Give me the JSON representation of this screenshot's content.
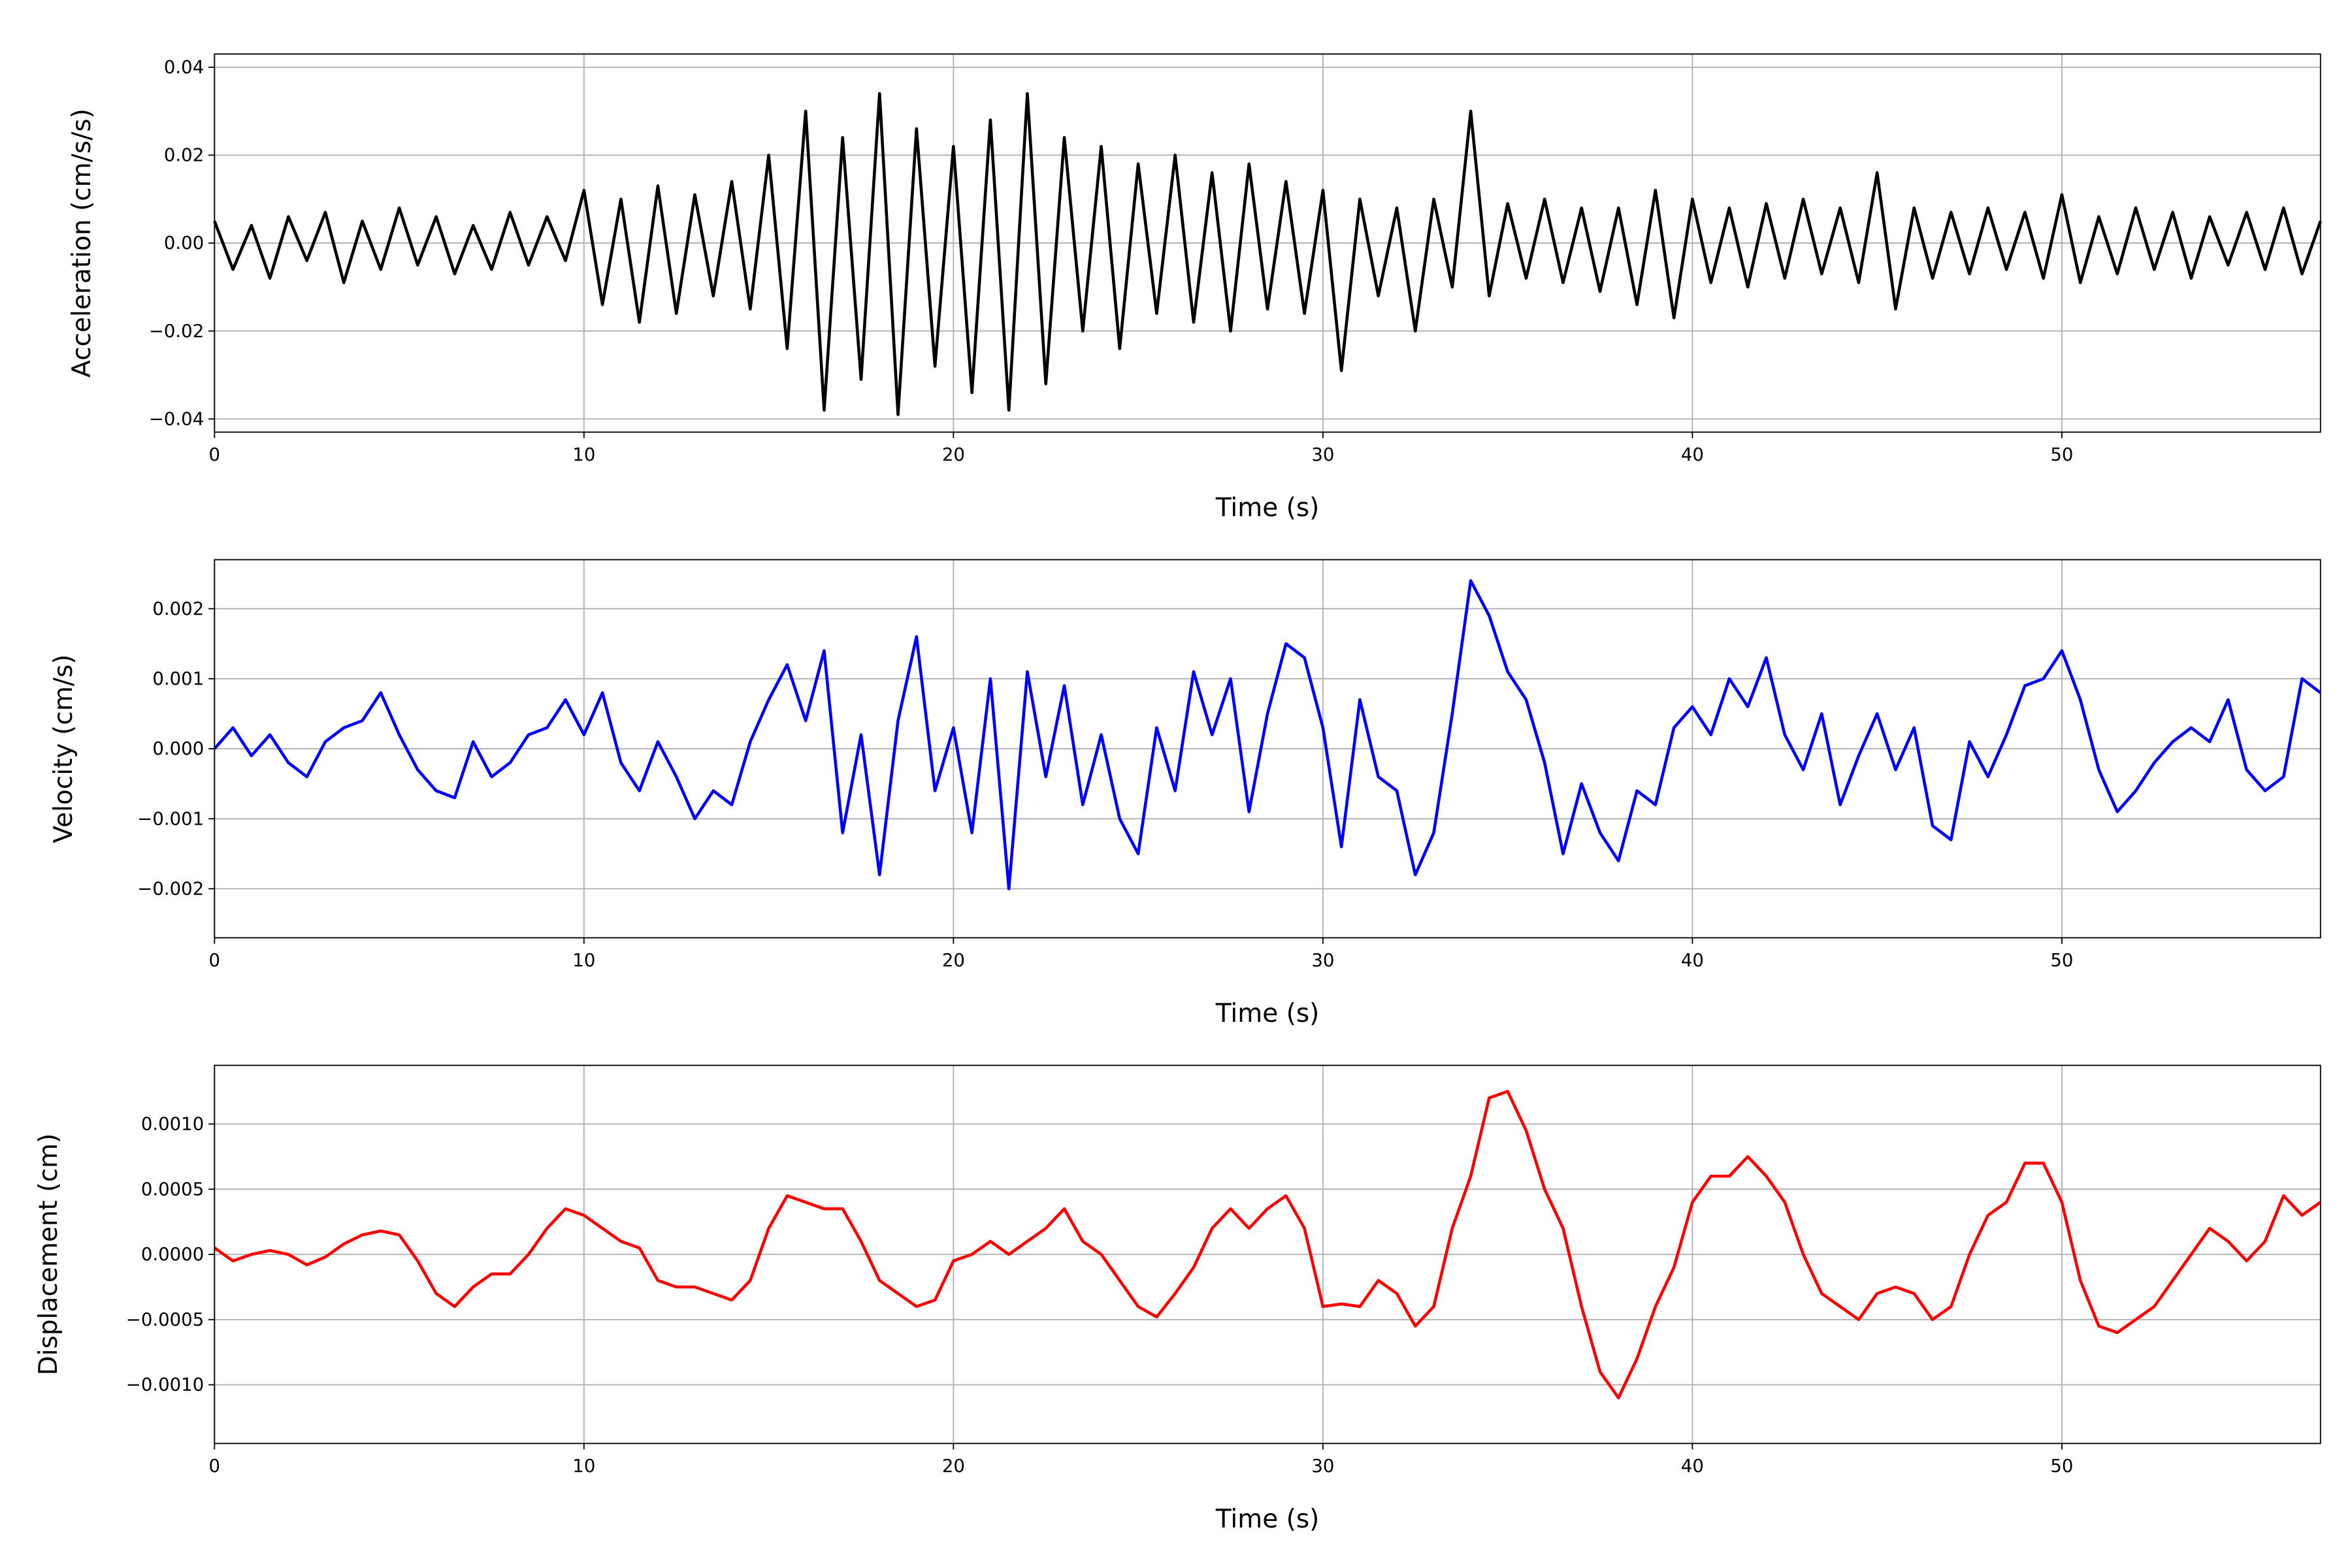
{
  "chart_data": [
    {
      "type": "line",
      "xlabel": "Time (s)",
      "ylabel": "Acceleration (cm/s/s)",
      "color": "#000000",
      "grid": true,
      "xlim": [
        0,
        57
      ],
      "xticks": [
        0,
        10,
        20,
        30,
        40,
        50
      ],
      "ylim": [
        -0.043,
        0.043
      ],
      "yticks": [
        {
          "value": -0.04,
          "label": "−0.04"
        },
        {
          "value": -0.02,
          "label": "−0.02"
        },
        {
          "value": 0,
          "label": "0.00"
        },
        0.02,
        0.04
      ],
      "x": [
        0,
        0.5,
        1,
        1.5,
        2,
        2.5,
        3,
        3.5,
        4,
        4.5,
        5,
        5.5,
        6,
        6.5,
        7,
        7.5,
        8,
        8.5,
        9,
        9.5,
        10,
        10.5,
        11,
        11.5,
        12,
        12.5,
        13,
        13.5,
        14,
        14.5,
        15,
        15.5,
        16,
        16.5,
        17,
        17.5,
        18,
        18.5,
        19,
        19.5,
        20,
        20.5,
        21,
        21.5,
        22,
        22.5,
        23,
        23.5,
        24,
        24.5,
        25,
        25.5,
        26,
        26.5,
        27,
        27.5,
        28,
        28.5,
        29,
        29.5,
        30,
        30.5,
        31,
        31.5,
        32,
        32.5,
        33,
        33.5,
        34,
        34.5,
        35,
        35.5,
        36,
        36.5,
        37,
        37.5,
        38,
        38.5,
        39,
        39.5,
        40,
        40.5,
        41,
        41.5,
        42,
        42.5,
        43,
        43.5,
        44,
        44.5,
        45,
        45.5,
        46,
        46.5,
        47,
        47.5,
        48,
        48.5,
        49,
        49.5,
        50,
        50.5,
        51,
        51.5,
        52,
        52.5,
        53,
        53.5,
        54,
        54.5,
        55,
        55.5,
        56,
        56.5,
        57
      ],
      "values": [
        0.005,
        -0.006,
        0.004,
        -0.008,
        0.006,
        -0.004,
        0.007,
        -0.009,
        0.005,
        -0.006,
        0.008,
        -0.005,
        0.006,
        -0.007,
        0.004,
        -0.006,
        0.007,
        -0.005,
        0.006,
        -0.004,
        0.012,
        -0.014,
        0.01,
        -0.018,
        0.013,
        -0.016,
        0.011,
        -0.012,
        0.014,
        -0.015,
        0.02,
        -0.024,
        0.03,
        -0.038,
        0.024,
        -0.031,
        0.034,
        -0.039,
        0.026,
        -0.028,
        0.022,
        -0.034,
        0.028,
        -0.038,
        0.034,
        -0.032,
        0.024,
        -0.02,
        0.022,
        -0.024,
        0.018,
        -0.016,
        0.02,
        -0.018,
        0.016,
        -0.02,
        0.018,
        -0.015,
        0.014,
        -0.016,
        0.012,
        -0.029,
        0.01,
        -0.012,
        0.008,
        -0.02,
        0.01,
        -0.01,
        0.03,
        -0.012,
        0.009,
        -0.008,
        0.01,
        -0.009,
        0.008,
        -0.011,
        0.008,
        -0.014,
        0.012,
        -0.017,
        0.01,
        -0.009,
        0.008,
        -0.01,
        0.009,
        -0.008,
        0.01,
        -0.007,
        0.008,
        -0.009,
        0.016,
        -0.015,
        0.008,
        -0.008,
        0.007,
        -0.007,
        0.008,
        -0.006,
        0.007,
        -0.008,
        0.011,
        -0.009,
        0.006,
        -0.007,
        0.008,
        -0.006,
        0.007,
        -0.008,
        0.006,
        -0.005,
        0.007,
        -0.006,
        0.008,
        -0.007,
        0.005
      ]
    },
    {
      "type": "line",
      "xlabel": "Time (s)",
      "ylabel": "Velocity (cm/s)",
      "color": "#0000ff",
      "grid": true,
      "xlim": [
        0,
        57
      ],
      "xticks": [
        0,
        10,
        20,
        30,
        40,
        50
      ],
      "ylim": [
        -0.0027,
        0.0027
      ],
      "yticks": [
        {
          "value": -0.002,
          "label": "−0.002"
        },
        {
          "value": -0.001,
          "label": "−0.001"
        },
        {
          "value": 0,
          "label": "0.000"
        },
        0.001,
        0.002
      ],
      "x": [
        0,
        0.5,
        1,
        1.5,
        2,
        2.5,
        3,
        3.5,
        4,
        4.5,
        5,
        5.5,
        6,
        6.5,
        7,
        7.5,
        8,
        8.5,
        9,
        9.5,
        10,
        10.5,
        11,
        11.5,
        12,
        12.5,
        13,
        13.5,
        14,
        14.5,
        15,
        15.5,
        16,
        16.5,
        17,
        17.5,
        18,
        18.5,
        19,
        19.5,
        20,
        20.5,
        21,
        21.5,
        22,
        22.5,
        23,
        23.5,
        24,
        24.5,
        25,
        25.5,
        26,
        26.5,
        27,
        27.5,
        28,
        28.5,
        29,
        29.5,
        30,
        30.5,
        31,
        31.5,
        32,
        32.5,
        33,
        33.5,
        34,
        34.5,
        35,
        35.5,
        36,
        36.5,
        37,
        37.5,
        38,
        38.5,
        39,
        39.5,
        40,
        40.5,
        41,
        41.5,
        42,
        42.5,
        43,
        43.5,
        44,
        44.5,
        45,
        45.5,
        46,
        46.5,
        47,
        47.5,
        48,
        48.5,
        49,
        49.5,
        50,
        50.5,
        51,
        51.5,
        52,
        52.5,
        53,
        53.5,
        54,
        54.5,
        55,
        55.5,
        56,
        56.5,
        57
      ],
      "values": [
        0.0,
        0.0003,
        -0.0001,
        0.0002,
        -0.0002,
        -0.0004,
        0.0001,
        0.0003,
        0.0004,
        0.0008,
        0.0002,
        -0.0003,
        -0.0006,
        -0.0007,
        0.0001,
        -0.0004,
        -0.0002,
        0.0002,
        0.0003,
        0.0007,
        0.0002,
        0.0008,
        -0.0002,
        -0.0006,
        0.0001,
        -0.0004,
        -0.001,
        -0.0006,
        -0.0008,
        0.0001,
        0.0007,
        0.0012,
        0.0004,
        0.0014,
        -0.0012,
        0.0002,
        -0.0018,
        0.0004,
        0.0016,
        -0.0006,
        0.0003,
        -0.0012,
        0.001,
        -0.002,
        0.0011,
        -0.0004,
        0.0009,
        -0.0008,
        0.0002,
        -0.001,
        -0.0015,
        0.0003,
        -0.0006,
        0.0011,
        0.0002,
        0.001,
        -0.0009,
        0.0005,
        0.0015,
        0.0013,
        0.0003,
        -0.0014,
        0.0007,
        -0.0004,
        -0.0006,
        -0.0018,
        -0.0012,
        0.0005,
        0.0024,
        0.0019,
        0.0011,
        0.0007,
        -0.0002,
        -0.0015,
        -0.0005,
        -0.0012,
        -0.0016,
        -0.0006,
        -0.0008,
        0.0003,
        0.0006,
        0.0002,
        0.001,
        0.0006,
        0.0013,
        0.0002,
        -0.0003,
        0.0005,
        -0.0008,
        -0.0001,
        0.0005,
        -0.0003,
        0.0003,
        -0.0011,
        -0.0013,
        0.0001,
        -0.0004,
        0.0002,
        0.0009,
        0.001,
        0.0014,
        0.0007,
        -0.0003,
        -0.0009,
        -0.0006,
        -0.0002,
        0.0001,
        0.0003,
        0.0001,
        0.0007,
        -0.0003,
        -0.0006,
        -0.0004,
        0.001,
        0.0008
      ]
    },
    {
      "type": "line",
      "xlabel": "Time (s)",
      "ylabel": "Displacement (cm)",
      "color": "#ff0000",
      "grid": true,
      "xlim": [
        0,
        57
      ],
      "xticks": [
        0,
        10,
        20,
        30,
        40,
        50
      ],
      "ylim": [
        -0.00145,
        0.00145
      ],
      "yticks": [
        {
          "value": -0.001,
          "label": "−0.0010"
        },
        {
          "value": -0.0005,
          "label": "−0.0005"
        },
        {
          "value": 0,
          "label": "0.0000"
        },
        0.0005,
        {
          "value": 0.001,
          "label": "0.0010"
        }
      ],
      "x": [
        0,
        0.5,
        1,
        1.5,
        2,
        2.5,
        3,
        3.5,
        4,
        4.5,
        5,
        5.5,
        6,
        6.5,
        7,
        7.5,
        8,
        8.5,
        9,
        9.5,
        10,
        10.5,
        11,
        11.5,
        12,
        12.5,
        13,
        13.5,
        14,
        14.5,
        15,
        15.5,
        16,
        16.5,
        17,
        17.5,
        18,
        18.5,
        19,
        19.5,
        20,
        20.5,
        21,
        21.5,
        22,
        22.5,
        23,
        23.5,
        24,
        24.5,
        25,
        25.5,
        26,
        26.5,
        27,
        27.5,
        28,
        28.5,
        29,
        29.5,
        30,
        30.5,
        31,
        31.5,
        32,
        32.5,
        33,
        33.5,
        34,
        34.5,
        35,
        35.5,
        36,
        36.5,
        37,
        37.5,
        38,
        38.5,
        39,
        39.5,
        40,
        40.5,
        41,
        41.5,
        42,
        42.5,
        43,
        43.5,
        44,
        44.5,
        45,
        45.5,
        46,
        46.5,
        47,
        47.5,
        48,
        48.5,
        49,
        49.5,
        50,
        50.5,
        51,
        51.5,
        52,
        52.5,
        53,
        53.5,
        54,
        54.5,
        55,
        55.5,
        56,
        56.5,
        57
      ],
      "values": [
        5e-05,
        -5e-05,
        0.0,
        3e-05,
        0.0,
        -8e-05,
        -2e-05,
        8e-05,
        0.00015,
        0.00018,
        0.00015,
        -5e-05,
        -0.0003,
        -0.0004,
        -0.00025,
        -0.00015,
        -0.00015,
        0.0,
        0.0002,
        0.00035,
        0.0003,
        0.0002,
        0.0001,
        5e-05,
        -0.0002,
        -0.00025,
        -0.00025,
        -0.0003,
        -0.00035,
        -0.0002,
        0.0002,
        0.00045,
        0.0004,
        0.00035,
        0.00035,
        0.0001,
        -0.0002,
        -0.0003,
        -0.0004,
        -0.00035,
        -5e-05,
        0.0,
        0.0001,
        0.0,
        0.0001,
        0.0002,
        0.00035,
        0.0001,
        0.0,
        -0.0002,
        -0.0004,
        -0.00048,
        -0.0003,
        -0.0001,
        0.0002,
        0.00035,
        0.0002,
        0.00035,
        0.00045,
        0.0002,
        -0.0004,
        -0.00038,
        -0.0004,
        -0.0002,
        -0.0003,
        -0.00055,
        -0.0004,
        0.0002,
        0.0006,
        0.0012,
        0.00125,
        0.00095,
        0.0005,
        0.0002,
        -0.0004,
        -0.0009,
        -0.0011,
        -0.0008,
        -0.0004,
        -0.0001,
        0.0004,
        0.0006,
        0.0006,
        0.00075,
        0.0006,
        0.0004,
        0.0,
        -0.0003,
        -0.0004,
        -0.0005,
        -0.0003,
        -0.00025,
        -0.0003,
        -0.0005,
        -0.0004,
        0.0,
        0.0003,
        0.0004,
        0.0007,
        0.0007,
        0.0004,
        -0.0002,
        -0.00055,
        -0.0006,
        -0.0005,
        -0.0004,
        -0.0002,
        0.0,
        0.0002,
        0.0001,
        -5e-05,
        0.0001,
        0.00045,
        0.0003,
        0.0004
      ]
    }
  ]
}
